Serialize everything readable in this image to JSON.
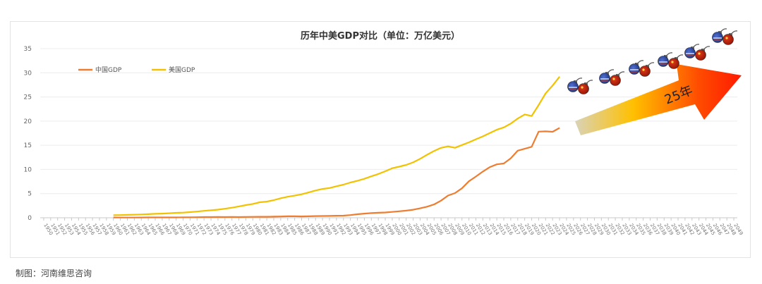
{
  "chart_data": {
    "type": "line",
    "title": "历年中美GDP对比（单位：万亿美元）",
    "xlabel": "",
    "ylabel": "",
    "ylim": [
      0,
      35
    ],
    "yticks": [
      0,
      5,
      10,
      15,
      20,
      25,
      30,
      35
    ],
    "grid": true,
    "legend_position": "top-left",
    "x_categories": [
      "1950",
      "1951",
      "1952",
      "1953",
      "1954",
      "1955",
      "1956",
      "1957",
      "1958",
      "1959",
      "1960",
      "1961",
      "1962",
      "1963",
      "1964",
      "1965",
      "1966",
      "1967",
      "1968",
      "1969",
      "1970",
      "1971",
      "1972",
      "1973",
      "1974",
      "1975",
      "1976",
      "1977",
      "1978",
      "1979",
      "1980",
      "1981",
      "1982",
      "1983",
      "1984",
      "1985",
      "1986",
      "1987",
      "1988",
      "1989",
      "1990",
      "1991",
      "1992",
      "1993",
      "1994",
      "1995",
      "1996",
      "1997",
      "1998",
      "1999",
      "2000",
      "2001",
      "2002",
      "2003",
      "2004",
      "2005",
      "2006",
      "2007",
      "2008",
      "2009",
      "2010",
      "2011",
      "2012",
      "2013",
      "2014",
      "2015",
      "2016",
      "2017",
      "2018",
      "2019",
      "2020",
      "2021",
      "2022",
      "2023",
      "2024",
      "2025",
      "2026",
      "2027",
      "2028",
      "2029",
      "2030",
      "2031",
      "2032",
      "2033",
      "2034",
      "2035",
      "2036",
      "2037",
      "2038",
      "2039",
      "2040",
      "2041",
      "2042",
      "2043",
      "2044",
      "2045",
      "2046",
      "2047",
      "2048",
      "2049"
    ],
    "series": [
      {
        "name": "中国GDP",
        "color": "#ed7d31",
        "x": [
          1960,
          1961,
          1962,
          1963,
          1964,
          1965,
          1966,
          1967,
          1968,
          1969,
          1970,
          1971,
          1972,
          1973,
          1974,
          1975,
          1976,
          1977,
          1978,
          1979,
          1980,
          1981,
          1982,
          1983,
          1984,
          1985,
          1986,
          1987,
          1988,
          1989,
          1990,
          1991,
          1992,
          1993,
          1994,
          1995,
          1996,
          1997,
          1998,
          1999,
          2000,
          2001,
          2002,
          2003,
          2004,
          2005,
          2006,
          2007,
          2008,
          2009,
          2010,
          2011,
          2012,
          2013,
          2014,
          2015,
          2016,
          2017,
          2018,
          2019,
          2020,
          2021,
          2022,
          2023,
          2024
        ],
        "values": [
          0.06,
          0.05,
          0.05,
          0.05,
          0.06,
          0.07,
          0.08,
          0.07,
          0.07,
          0.08,
          0.09,
          0.1,
          0.11,
          0.14,
          0.14,
          0.16,
          0.15,
          0.17,
          0.15,
          0.18,
          0.19,
          0.2,
          0.21,
          0.23,
          0.26,
          0.31,
          0.3,
          0.27,
          0.31,
          0.35,
          0.36,
          0.38,
          0.43,
          0.44,
          0.56,
          0.73,
          0.86,
          0.96,
          1.03,
          1.09,
          1.21,
          1.34,
          1.47,
          1.66,
          1.96,
          2.29,
          2.75,
          3.55,
          4.59,
          5.1,
          6.09,
          7.55,
          8.53,
          9.57,
          10.48,
          11.06,
          11.23,
          12.31,
          13.89,
          14.28,
          14.69,
          17.82,
          17.88,
          17.79,
          18.6
        ]
      },
      {
        "name": "美国GDP",
        "color": "#f2c200",
        "x": [
          1960,
          1961,
          1962,
          1963,
          1964,
          1965,
          1966,
          1967,
          1968,
          1969,
          1970,
          1971,
          1972,
          1973,
          1974,
          1975,
          1976,
          1977,
          1978,
          1979,
          1980,
          1981,
          1982,
          1983,
          1984,
          1985,
          1986,
          1987,
          1988,
          1989,
          1990,
          1991,
          1992,
          1993,
          1994,
          1995,
          1996,
          1997,
          1998,
          1999,
          2000,
          2001,
          2002,
          2003,
          2004,
          2005,
          2006,
          2007,
          2008,
          2009,
          2010,
          2011,
          2012,
          2013,
          2014,
          2015,
          2016,
          2017,
          2018,
          2019,
          2020,
          2021,
          2022,
          2023,
          2024
        ],
        "values": [
          0.54,
          0.56,
          0.6,
          0.64,
          0.69,
          0.74,
          0.81,
          0.86,
          0.94,
          1.02,
          1.07,
          1.16,
          1.28,
          1.43,
          1.55,
          1.68,
          1.87,
          2.08,
          2.35,
          2.63,
          2.86,
          3.21,
          3.34,
          3.64,
          4.04,
          4.34,
          4.58,
          4.86,
          5.24,
          5.64,
          5.96,
          6.16,
          6.52,
          6.86,
          7.29,
          7.64,
          8.07,
          8.58,
          9.06,
          9.63,
          10.25,
          10.58,
          10.94,
          11.46,
          12.21,
          13.04,
          13.82,
          14.47,
          14.77,
          14.48,
          15.05,
          15.6,
          16.25,
          16.84,
          17.55,
          18.21,
          18.7,
          19.48,
          20.53,
          21.38,
          21.06,
          23.32,
          25.74,
          27.36,
          29.2
        ]
      }
    ],
    "annotation": {
      "arrow_text": "25年",
      "arrow_start_year": 2025,
      "arrow_end_year": 2049
    }
  },
  "footer": {
    "credit": "制图：河南维思咨询"
  }
}
